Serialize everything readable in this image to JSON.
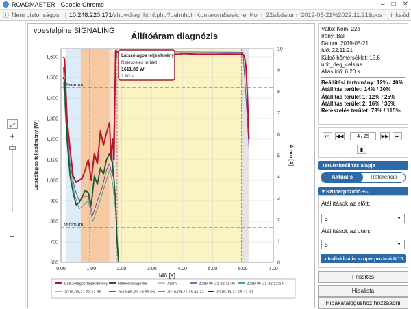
{
  "window": {
    "title": "ROADMASTER - Google Chrome",
    "minimize": "–",
    "maximize": "□",
    "close": "✕"
  },
  "address": {
    "warning": "Nem biztonságos",
    "separator": "|",
    "host": "10.248.220.171",
    "path": "/showdiag_html.php?bahnhof=Komarom&weiche=Kom_22a&datum=2019-05-21%2022:11:21&pos=_links&dir=links&typ=5"
  },
  "left_tools": {
    "expand_icon": "⤢",
    "plus": "+",
    "minus": "−",
    "box_label": "▫"
  },
  "chart": {
    "brand": "voestalpine SIGNALING",
    "title": "Állítóáram diagnózis",
    "tooltip": {
      "title": "Látszólagos teljesítmény",
      "line2": "Reteszelés terület",
      "value": "1611.80 W",
      "time": "3.90 s"
    },
    "max_label": "Maximum",
    "min_label": "Minimum",
    "legend": [
      "Látszólagos teljesítmény",
      "Referenciagörbe",
      "Áram",
      "2019-05-21 22:11:45",
      "2019-05-21 22:12:14",
      "2019-05-21 22:12:38",
      "2019-05-21 15:53:06",
      "2019-05-21 15:41:22",
      "2019-05-21 15:12:17"
    ]
  },
  "chart_data": {
    "type": "line",
    "title": "Állítóáram diagnózis",
    "xlabel": "Idő [s]",
    "ylabel": "Látszólagos teljesítmény [W]",
    "y2label": "Áram [A]",
    "xlim": [
      0,
      7
    ],
    "ylim": [
      600,
      1640
    ],
    "y2lim": [
      0,
      10
    ],
    "xticks": [
      "0.00",
      "1.00",
      "2.00",
      "3.00",
      "4.00",
      "5.00",
      "6.00",
      "7.00"
    ],
    "yticks": [
      "600",
      "700",
      "800",
      "900",
      "1,000",
      "1,100",
      "1,200",
      "1,300",
      "1,400",
      "1,500",
      "1,600"
    ],
    "y2ticks": [
      "0",
      "1",
      "2",
      "3",
      "4",
      "5",
      "6",
      "7",
      "8",
      "9",
      "10"
    ],
    "maximum": 1450,
    "minimum": 770,
    "bands": [
      {
        "from": 0.15,
        "to": 0.65,
        "color": "#dcecf8"
      },
      {
        "from": 0.65,
        "to": 1.6,
        "color": "#f6c9a3"
      },
      {
        "from": 1.6,
        "to": 1.9,
        "color": "#f8e0c8"
      },
      {
        "from": 1.9,
        "to": 6.0,
        "color": "#fbf4c2"
      },
      {
        "from": 6.0,
        "to": 6.2,
        "color": "#e4e4e4"
      }
    ],
    "series": [
      {
        "name": "Látszólagos teljesítmény",
        "color": "#b5182b",
        "width": 2,
        "x": [
          0.08,
          0.12,
          0.2,
          0.3,
          0.4,
          0.5,
          0.6,
          0.7,
          0.8,
          0.9,
          1.0,
          1.1,
          1.2,
          1.3,
          1.4,
          1.5,
          1.6,
          1.65,
          1.7,
          1.75,
          1.8,
          1.85,
          3.9,
          4.0,
          4.5,
          5.0,
          5.5,
          6.0,
          6.05,
          6.1,
          6.15,
          6.2
        ],
        "y": [
          1600,
          1590,
          1300,
          1150,
          1020,
          990,
          1000,
          1010,
          1050,
          1100,
          1000,
          1130,
          1080,
          1240,
          1170,
          1230,
          1280,
          1110,
          1200,
          1100,
          1630,
          1620,
          1611.8,
          1615,
          1612,
          1612,
          1613,
          1612,
          1600,
          1550,
          1400,
          1200
        ]
      },
      {
        "name": "Referenciagörbe",
        "color": "#1a5b35",
        "width": 1.8,
        "x": [
          0.08,
          0.12,
          0.2,
          0.3,
          0.4,
          0.5,
          0.6,
          0.7,
          0.8,
          0.9,
          1.0,
          1.1,
          1.2,
          1.3,
          1.4,
          1.5,
          1.6,
          1.7,
          1.75,
          1.8,
          1.85,
          1.9
        ],
        "y": [
          1500,
          1480,
          1200,
          1020,
          940,
          880,
          890,
          920,
          950,
          940,
          880,
          1020,
          980,
          1060,
          1030,
          1100,
          1130,
          1080,
          1000,
          900,
          700,
          600
        ]
      },
      {
        "name": "2019-05-21 22:12:14",
        "color": "#6a4a9a",
        "width": 1,
        "x": [
          0.08,
          0.15,
          0.3,
          0.45,
          0.6,
          0.75,
          0.9,
          1.05,
          1.2,
          1.35,
          1.5,
          1.6,
          1.7,
          1.8,
          1.85,
          6.0,
          6.1,
          6.2
        ],
        "y": [
          1550,
          1350,
          1080,
          960,
          900,
          920,
          920,
          830,
          900,
          960,
          1050,
          1080,
          1020,
          1560,
          1625,
          1622,
          1400,
          1150
        ]
      },
      {
        "name": "2019-05-21 15:41:22",
        "color": "#55a07c",
        "width": 1,
        "x": [
          0.08,
          0.15,
          0.3,
          0.45,
          0.6,
          0.75,
          0.9,
          1.05,
          1.2,
          1.35,
          1.5,
          1.6,
          1.7,
          1.8,
          1.9
        ],
        "y": [
          1480,
          1300,
          1050,
          930,
          860,
          880,
          900,
          800,
          860,
          930,
          1000,
          1050,
          990,
          850,
          620
        ]
      }
    ]
  },
  "info": {
    "valto": "Váltó: Kom_22a",
    "irany": "Irány: Bal",
    "datum": "Dátum: 2019-05-21",
    "ido": "Idő: 22:11:21",
    "homerseklet": "Külső hőmérséklet: 15.6",
    "unit": "unit_deg_celsius",
    "allas_ido": "Állás idő: 6.20 s",
    "beallitasi": "Beállítási tartomány: 12% / 40%",
    "allitas": "Átállítás terület: 14% / 30%",
    "allitas1": "Átállítás terület 1: 12% / 25%",
    "allitas2": "Átállítás terület 2: 16% / 35%",
    "reteszeles": "Reteszelés terület: 73% / 115%"
  },
  "nav": {
    "first": "⏮",
    "prev": "◀◀",
    "page": "4 / 25",
    "next": "▶▶",
    "last": "⏭",
    "doc_icon": "▮"
  },
  "terulet": {
    "header": "Területbeállítás alapja",
    "aktualis": "Aktuális",
    "referencia": "Referencia"
  },
  "szuper": {
    "header": "Szuperpozíció +/-",
    "elott_label": "Átállítások az előtt:",
    "elott_value": "3",
    "utan_label": "Átállítások az után:",
    "utan_value": "5",
    "individual": "Individuális szuperpozíció 0/10"
  },
  "actions": {
    "frissites": "Frissítés",
    "hibalista": "Hibalista",
    "hibakatalogus": "Hibakatalógushoz hozzáadni"
  }
}
